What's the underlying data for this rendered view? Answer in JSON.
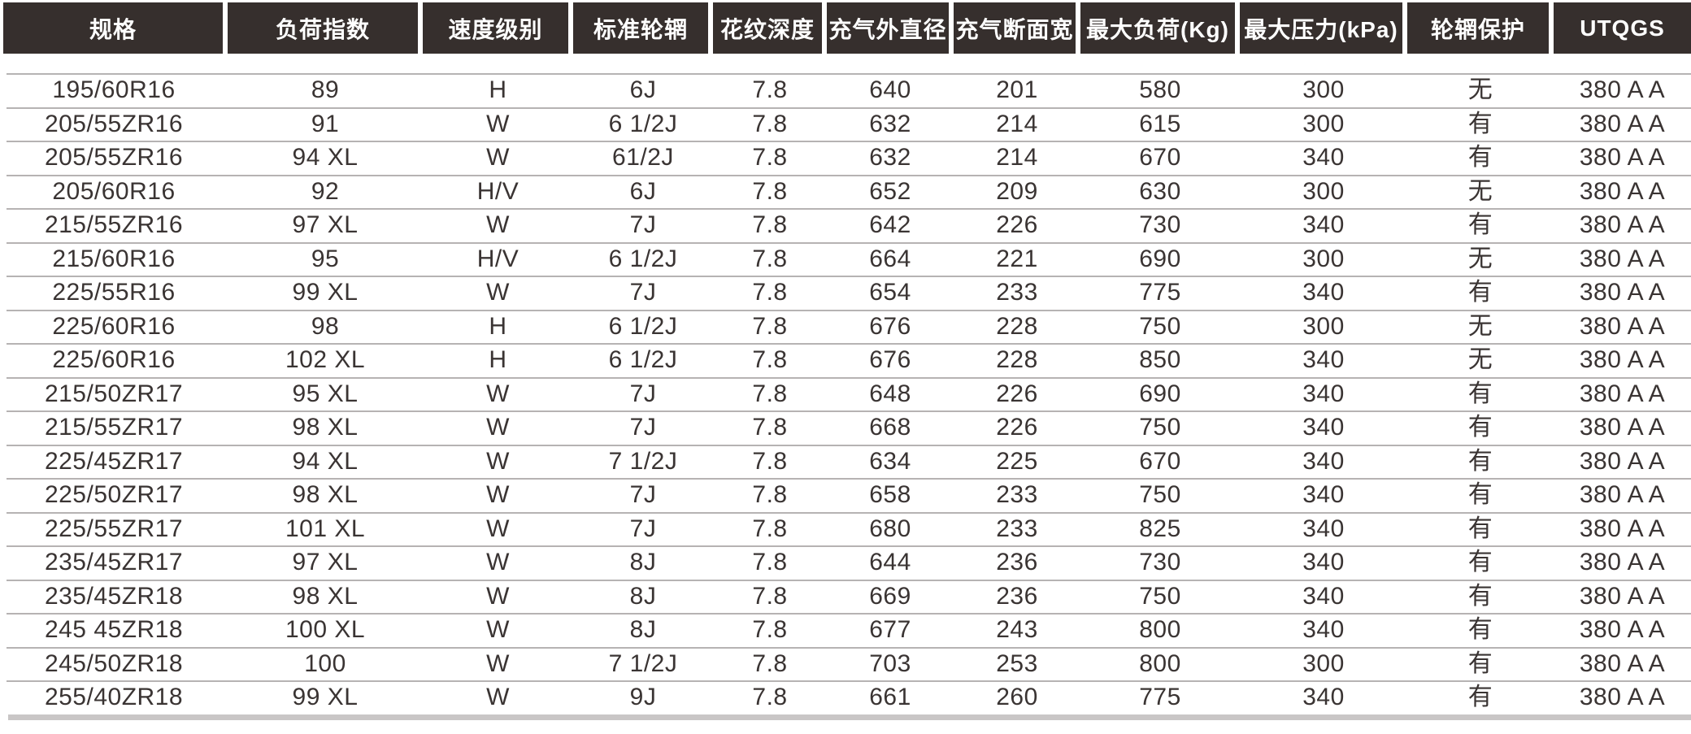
{
  "table": {
    "columns": [
      "规格",
      "负荷指数",
      "速度级别",
      "标准轮辋",
      "花纹深度",
      "充气外直径",
      "充气断面宽",
      "最大负荷(Kg)",
      "最大压力(kPa)",
      "轮辋保护",
      "UTQGS"
    ],
    "rows": [
      [
        "195/60R16",
        "89",
        "H",
        "6J",
        "7.8",
        "640",
        "201",
        "580",
        "300",
        "无",
        "380 A A"
      ],
      [
        "205/55ZR16",
        "91",
        "W",
        "6 1/2J",
        "7.8",
        "632",
        "214",
        "615",
        "300",
        "有",
        "380 A A"
      ],
      [
        "205/55ZR16",
        "94 XL",
        "W",
        "61/2J",
        "7.8",
        "632",
        "214",
        "670",
        "340",
        "有",
        "380 A A"
      ],
      [
        "205/60R16",
        "92",
        "H/V",
        "6J",
        "7.8",
        "652",
        "209",
        "630",
        "300",
        "无",
        "380 A A"
      ],
      [
        "215/55ZR16",
        "97 XL",
        "W",
        "7J",
        "7.8",
        "642",
        "226",
        "730",
        "340",
        "有",
        "380 A A"
      ],
      [
        "215/60R16",
        "95",
        "H/V",
        "6 1/2J",
        "7.8",
        "664",
        "221",
        "690",
        "300",
        "无",
        "380 A A"
      ],
      [
        "225/55R16",
        "99 XL",
        "W",
        "7J",
        "7.8",
        "654",
        "233",
        "775",
        "340",
        "有",
        "380 A A"
      ],
      [
        "225/60R16",
        "98",
        "H",
        "6 1/2J",
        "7.8",
        "676",
        "228",
        "750",
        "300",
        "无",
        "380 A A"
      ],
      [
        "225/60R16",
        "102 XL",
        "H",
        "6 1/2J",
        "7.8",
        "676",
        "228",
        "850",
        "340",
        "无",
        "380 A A"
      ],
      [
        "215/50ZR17",
        "95 XL",
        "W",
        "7J",
        "7.8",
        "648",
        "226",
        "690",
        "340",
        "有",
        "380 A A"
      ],
      [
        "215/55ZR17",
        "98 XL",
        "W",
        "7J",
        "7.8",
        "668",
        "226",
        "750",
        "340",
        "有",
        "380 A A"
      ],
      [
        "225/45ZR17",
        "94 XL",
        "W",
        "7 1/2J",
        "7.8",
        "634",
        "225",
        "670",
        "340",
        "有",
        "380 A A"
      ],
      [
        "225/50ZR17",
        "98 XL",
        "W",
        "7J",
        "7.8",
        "658",
        "233",
        "750",
        "340",
        "有",
        "380 A A"
      ],
      [
        "225/55ZR17",
        "101 XL",
        "W",
        "7J",
        "7.8",
        "680",
        "233",
        "825",
        "340",
        "有",
        "380 A A"
      ],
      [
        "235/45ZR17",
        "97 XL",
        "W",
        "8J",
        "7.8",
        "644",
        "236",
        "730",
        "340",
        "有",
        "380 A A"
      ],
      [
        "235/45ZR18",
        "98 XL",
        "W",
        "8J",
        "7.8",
        "669",
        "236",
        "750",
        "340",
        "有",
        "380 A A"
      ],
      [
        "245 45ZR18",
        "100 XL",
        "W",
        "8J",
        "7.8",
        "677",
        "243",
        "800",
        "340",
        "有",
        "380 A A"
      ],
      [
        "245/50ZR18",
        "100",
        "W",
        "7 1/2J",
        "7.8",
        "703",
        "253",
        "800",
        "300",
        "有",
        "380 A A"
      ],
      [
        "255/40ZR18",
        "99 XL",
        "W",
        "9J",
        "7.8",
        "661",
        "260",
        "775",
        "340",
        "有",
        "380 A A"
      ]
    ]
  },
  "colors": {
    "header_bg": "#362f2d",
    "header_text": "#ffffff",
    "body_text": "#3a3433",
    "row_separator": "#b6b3b3",
    "bottom_bar": "#c9c6c6"
  }
}
